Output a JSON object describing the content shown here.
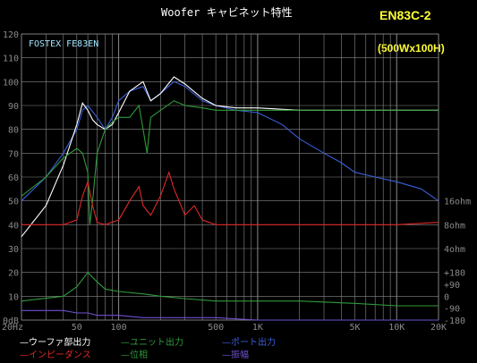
{
  "header": {
    "title": "Woofer キャビネット特性",
    "model": "EN83C-2",
    "size": "(500Wx100H)",
    "brand_label": "FOSTEX FE83EN"
  },
  "colors": {
    "port": "#3a5fd8",
    "woofer": "#ffffff",
    "unit": "#2f9a3a",
    "impedance": "#e02828",
    "phase": "#2f9a3a",
    "amplitude": "#6f4fd0",
    "composite": "#9fe6ff",
    "grid": "#8a8a8a"
  },
  "legend": [
    {
      "label": "ウーファ部出力",
      "color": "#ffffff",
      "dash": "—"
    },
    {
      "label": "ユニット出力",
      "color": "#2f9a3a",
      "dash": "—"
    },
    {
      "label": "ポート出力",
      "color": "#3a5fd8",
      "dash": "—"
    },
    {
      "label": "インピーダンス",
      "color": "#e02828",
      "dash": "—"
    },
    {
      "label": "位相",
      "color": "#2f9a3a",
      "dash": "—"
    },
    {
      "label": "振幅",
      "color": "#6f4fd0",
      "dash": "—"
    }
  ],
  "chart_data": {
    "type": "line",
    "xscale": "log",
    "xlim": [
      20,
      20000
    ],
    "ylim": [
      0,
      120
    ],
    "y_ticks": [
      "120",
      "110",
      "100",
      "90",
      "80",
      "70",
      "60",
      "50",
      "40",
      "30",
      "20",
      "10",
      "0dB"
    ],
    "x_ticks": [
      {
        "value": 20,
        "label": "20Hz"
      },
      {
        "value": 50,
        "label": "50"
      },
      {
        "value": 100,
        "label": "100"
      },
      {
        "value": 500,
        "label": "500"
      },
      {
        "value": 1000,
        "label": "1K"
      },
      {
        "value": 5000,
        "label": "5K"
      },
      {
        "value": 10000,
        "label": "10K"
      },
      {
        "value": 20000,
        "label": "20K"
      }
    ],
    "right_ticks": [
      {
        "y": 50,
        "label": "16ohm"
      },
      {
        "y": 40,
        "label": "8ohm"
      },
      {
        "y": 30,
        "label": "4ohm"
      },
      {
        "y": 20,
        "label": "+180"
      },
      {
        "y": 15,
        "label": "+90"
      },
      {
        "y": 10,
        "label": "0"
      },
      {
        "y": 5,
        "label": "-90"
      },
      {
        "y": 0,
        "label": "-180"
      }
    ],
    "grid": true,
    "series": [
      {
        "name": "ポート出力",
        "color": "#3a5fd8",
        "x": [
          20,
          30,
          40,
          50,
          55,
          60,
          70,
          80,
          90,
          100,
          120,
          150,
          170,
          200,
          250,
          300,
          400,
          500,
          700,
          1000,
          1500,
          2000,
          3000,
          4000,
          5000,
          7000,
          10000,
          15000,
          20000
        ],
        "y": [
          50,
          60,
          70,
          80,
          88,
          90,
          85,
          80,
          85,
          92,
          96,
          98,
          92,
          95,
          100,
          98,
          92,
          90,
          88,
          87,
          82,
          76,
          70,
          66,
          62,
          60,
          58,
          55,
          50
        ]
      },
      {
        "name": "ウーファ部出力",
        "color": "#ffffff",
        "x": [
          20,
          30,
          40,
          50,
          55,
          60,
          65,
          70,
          80,
          90,
          100,
          120,
          150,
          170,
          200,
          250,
          300,
          400,
          500,
          700,
          1000,
          2000,
          5000,
          10000,
          20000
        ],
        "y": [
          35,
          48,
          65,
          82,
          91,
          88,
          84,
          82,
          80,
          82,
          87,
          96,
          100,
          92,
          95,
          102,
          99,
          93,
          90,
          89,
          89,
          88,
          88,
          88,
          88
        ]
      },
      {
        "name": "ユニット出力",
        "color": "#2f9a3a",
        "x": [
          20,
          30,
          40,
          50,
          55,
          60,
          62,
          65,
          70,
          80,
          90,
          100,
          120,
          140,
          150,
          160,
          170,
          200,
          250,
          300,
          400,
          500,
          700,
          1000,
          2000,
          5000,
          10000,
          20000
        ],
        "y": [
          52,
          60,
          68,
          72,
          70,
          62,
          40,
          50,
          70,
          80,
          83,
          85,
          85,
          90,
          80,
          70,
          85,
          88,
          92,
          90,
          89,
          88,
          88,
          88,
          88,
          88,
          88,
          88
        ]
      },
      {
        "name": "インピーダンス",
        "color": "#e02828",
        "x": [
          20,
          40,
          50,
          55,
          60,
          65,
          70,
          80,
          100,
          120,
          140,
          150,
          170,
          200,
          230,
          250,
          300,
          350,
          400,
          500,
          1000,
          5000,
          10000,
          20000
        ],
        "y": [
          40,
          40,
          42,
          52,
          58,
          48,
          41,
          40,
          42,
          50,
          56,
          48,
          44,
          52,
          62,
          55,
          44,
          48,
          42,
          40,
          40,
          40,
          40,
          41
        ]
      },
      {
        "name": "位相",
        "color": "#2f9a3a",
        "x": [
          20,
          40,
          50,
          60,
          70,
          80,
          100,
          150,
          200,
          300,
          500,
          1000,
          2000,
          5000,
          10000,
          20000
        ],
        "y": [
          8,
          10,
          14,
          20,
          16,
          13,
          12,
          11,
          10,
          9,
          8,
          8,
          8,
          7,
          6,
          6
        ]
      },
      {
        "name": "振幅",
        "color": "#6f4fd0",
        "x": [
          20,
          30,
          40,
          50,
          60,
          70,
          80,
          100,
          150,
          200,
          300,
          500,
          1000,
          5000,
          20000
        ],
        "y": [
          4,
          4,
          4,
          3,
          3,
          2,
          2,
          2,
          1,
          1,
          1,
          1,
          0,
          0,
          0
        ]
      }
    ]
  }
}
